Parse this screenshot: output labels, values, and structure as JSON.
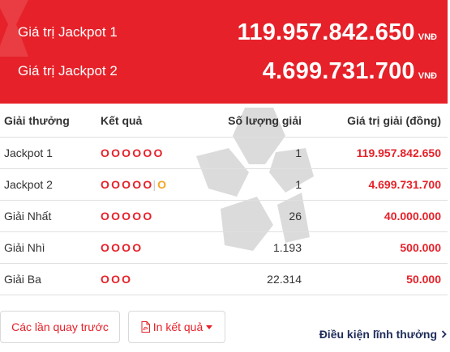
{
  "jackpots": [
    {
      "label": "Giá trị Jackpot 1",
      "amount": "119.957.842.650",
      "unit": "VNĐ"
    },
    {
      "label": "Giá trị Jackpot 2",
      "amount": "4.699.731.700",
      "unit": "VNĐ"
    }
  ],
  "table": {
    "headers": {
      "prize": "Giải thưởng",
      "result": "Kết quả",
      "count": "Số lượng giải",
      "value": "Giá trị giải (đồng)"
    },
    "rows": [
      {
        "name": "Jackpot 1",
        "balls": "OOOOOO",
        "special": "",
        "count": "1",
        "value": "119.957.842.650"
      },
      {
        "name": "Jackpot 2",
        "balls": "OOOOO",
        "sep": "|",
        "special": "O",
        "count": "1",
        "value": "4.699.731.700"
      },
      {
        "name": "Giải Nhất",
        "balls": "OOOOO",
        "special": "",
        "count": "26",
        "value": "40.000.000"
      },
      {
        "name": "Giải Nhì",
        "balls": "OOOO",
        "special": "",
        "count": "1.193",
        "value": "500.000"
      },
      {
        "name": "Giải Ba",
        "balls": "OOO",
        "special": "",
        "count": "22.314",
        "value": "50.000"
      }
    ]
  },
  "buttons": {
    "previous": "Các lần quay trước",
    "print": "In kết quả"
  },
  "link": {
    "conditions": "Điều kiện lĩnh thưởng"
  },
  "colors": {
    "brand_red": "#e62129",
    "special_ball": "#f5a623",
    "link_navy": "#1f2d5a"
  },
  "icons": {
    "print": "pdf-file-icon",
    "dropdown": "caret-down-icon",
    "link": "chevron-right-icon"
  }
}
